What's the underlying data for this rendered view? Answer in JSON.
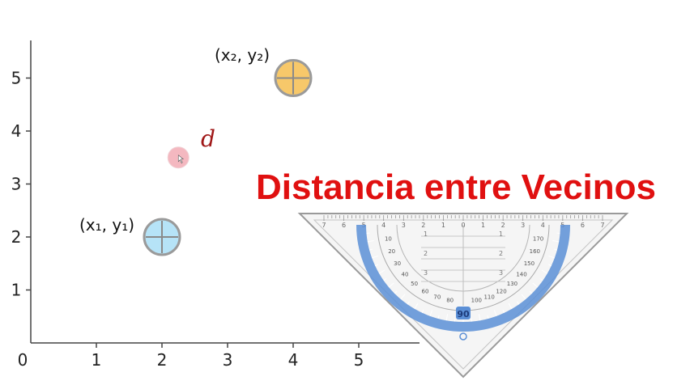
{
  "title": "Distancia entre Vecinos",
  "distance_label": "d",
  "point1_label": "(x₁, y₁)",
  "point2_label": "(x₂, y₂)",
  "colors": {
    "point1": "#b6e3f7",
    "point2": "#f7c86a",
    "mid": "#f4b8c0",
    "title": "#e01010",
    "distance": "#a01818",
    "protractor_arc": "#5b8fd6"
  },
  "icons": [
    "protractor-set-square-icon"
  ],
  "chart_data": {
    "type": "scatter",
    "x_ticks": [
      "0",
      "1",
      "2",
      "3",
      "4",
      "5"
    ],
    "y_ticks": [
      "1",
      "2",
      "3",
      "4",
      "5"
    ],
    "points": [
      {
        "name": "(x₁, y₁)",
        "x": 2,
        "y": 2
      },
      {
        "name": "(x₂, y₂)",
        "x": 4,
        "y": 5
      },
      {
        "name": "d",
        "x": 2.25,
        "y": 3.5
      }
    ],
    "xlim": [
      0,
      5.9
    ],
    "ylim": [
      0,
      5.7
    ],
    "grid": false
  },
  "protractor": {
    "center_label": "90",
    "outer_scale": [
      "7",
      "6",
      "5",
      "4",
      "3",
      "2",
      "1",
      "0",
      "1",
      "2",
      "3",
      "4",
      "5",
      "6",
      "7"
    ],
    "angle_labels": [
      "10",
      "20",
      "30",
      "40",
      "50",
      "60",
      "70",
      "80",
      "100",
      "110",
      "120",
      "130",
      "140",
      "150",
      "160",
      "170"
    ],
    "vertical_ticks": [
      "1",
      "2",
      "3"
    ]
  }
}
